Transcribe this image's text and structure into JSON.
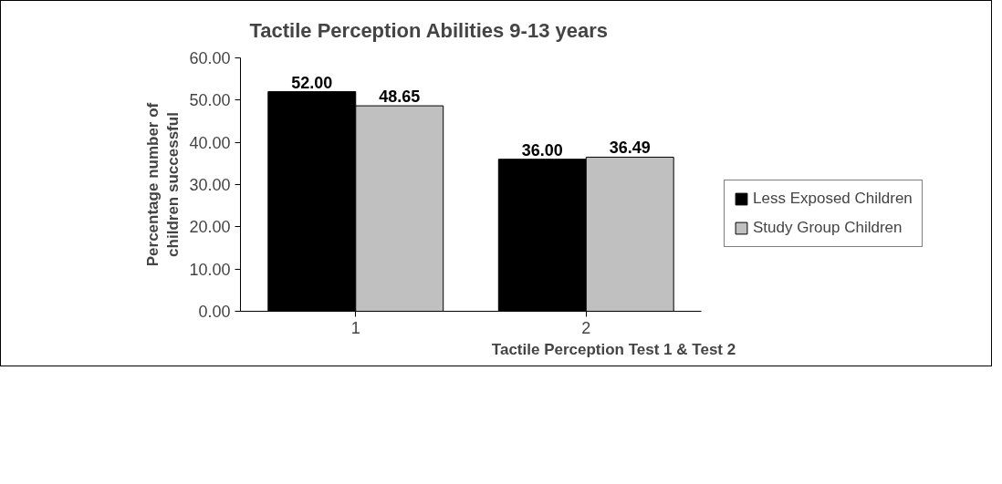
{
  "chart_data": {
    "type": "bar",
    "title": "Tactile Perception Abilities 9-13 years",
    "xlabel": "Tactile Perception Test 1 & Test 2",
    "ylabel": "Percentage number of\nchildren successful",
    "categories": [
      "1",
      "2"
    ],
    "series": [
      {
        "name": "Less Exposed Children",
        "color": "#000000",
        "values": [
          52.0,
          36.0
        ],
        "value_labels": [
          "52.00",
          "36.00"
        ]
      },
      {
        "name": "Study Group Children",
        "color": "#c0c0c0",
        "values": [
          48.65,
          36.49
        ],
        "value_labels": [
          "48.65",
          "36.49"
        ]
      }
    ],
    "ylim": [
      0,
      60
    ],
    "yticks": [
      {
        "value": 0,
        "label": "0.00"
      },
      {
        "value": 10,
        "label": "10.00"
      },
      {
        "value": 20,
        "label": "20.00"
      },
      {
        "value": 30,
        "label": "30.00"
      },
      {
        "value": 40,
        "label": "40.00"
      },
      {
        "value": 50,
        "label": "50.00"
      },
      {
        "value": 60,
        "label": "60.00"
      }
    ],
    "grid": false,
    "legend": "right"
  }
}
